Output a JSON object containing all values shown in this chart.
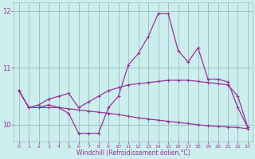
{
  "x": [
    0,
    1,
    2,
    3,
    4,
    5,
    6,
    7,
    8,
    9,
    10,
    11,
    12,
    13,
    14,
    15,
    16,
    17,
    18,
    19,
    20,
    21,
    22,
    23
  ],
  "line1": [
    10.6,
    10.3,
    10.3,
    10.35,
    10.3,
    10.2,
    9.85,
    9.85,
    9.85,
    10.3,
    10.5,
    11.05,
    11.25,
    11.55,
    11.95,
    11.95,
    11.3,
    11.1,
    11.35,
    10.8,
    10.8,
    10.75,
    10.3,
    9.95
  ],
  "line2": [
    10.6,
    10.3,
    10.35,
    10.45,
    10.5,
    10.55,
    10.3,
    10.4,
    10.5,
    10.6,
    10.65,
    10.7,
    10.72,
    10.74,
    10.76,
    10.78,
    10.78,
    10.78,
    10.76,
    10.74,
    10.72,
    10.7,
    10.5,
    9.95
  ],
  "line3": [
    10.6,
    10.3,
    10.3,
    10.3,
    10.3,
    10.28,
    10.26,
    10.24,
    10.22,
    10.2,
    10.18,
    10.15,
    10.12,
    10.1,
    10.08,
    10.06,
    10.04,
    10.02,
    10.0,
    9.98,
    9.97,
    9.96,
    9.95,
    9.93
  ],
  "line_color": "#993399",
  "bg_color": "#cceeee",
  "grid_color": "#99bbbb",
  "xlabel": "Windchill (Refroidissement éolien,°C)",
  "ylim": [
    9.7,
    12.15
  ],
  "xlim": [
    -0.5,
    23.5
  ],
  "yticks": [
    10,
    11,
    12
  ],
  "xticks": [
    0,
    1,
    2,
    3,
    4,
    5,
    6,
    7,
    8,
    9,
    10,
    11,
    12,
    13,
    14,
    15,
    16,
    17,
    18,
    19,
    20,
    21,
    22,
    23
  ]
}
